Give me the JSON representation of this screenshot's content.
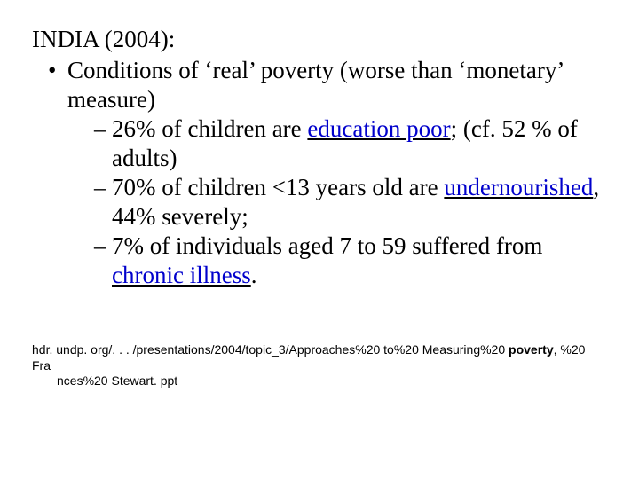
{
  "colors": {
    "background": "#ffffff",
    "text": "#000000",
    "term_color": "#0000cc",
    "term_underline": "#000000"
  },
  "typography": {
    "body_family": "Times New Roman",
    "body_fontsize_pt": 27,
    "footer_family": "Arial",
    "footer_fontsize_pt": 14
  },
  "heading": "INDIA (2004):",
  "bullet": {
    "lead": "Conditions of ‘real’ poverty (worse than ‘monetary’ measure)",
    "items": [
      {
        "pre": "26% of children are ",
        "term": "education poor",
        "post": "; (cf. 52 % of adults)"
      },
      {
        "pre": "70%   of children <13 years old are ",
        "term": "undernourished",
        "post": ", 44% severely;"
      },
      {
        "pre": "7% of individuals aged 7 to 59 suffered from ",
        "term": "chronic illness",
        "post": "."
      }
    ]
  },
  "footer": {
    "line1_a": "hdr. undp. org/. . . /presentations/2004/topic_3/Approaches%20 to%20 Measuring%20 ",
    "line1_bold": "poverty",
    "line1_b": ", %20 Fra",
    "line2": "nces%20 Stewart. ppt"
  }
}
